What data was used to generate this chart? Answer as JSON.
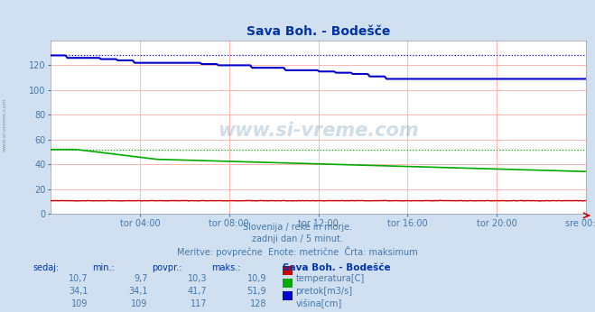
{
  "title": "Sava Boh. - Bodešče",
  "bg_color": "#d0e0f0",
  "plot_bg_color": "#ffffff",
  "grid_color": "#ffaaaa",
  "xlabel_color": "#4477aa",
  "title_color": "#0033aa",
  "x_labels": [
    "tor 04:00",
    "tor 08:00",
    "tor 12:00",
    "tor 16:00",
    "tor 20:00",
    "sre 00:00"
  ],
  "y_ticks": [
    0,
    20,
    40,
    60,
    80,
    100,
    120
  ],
  "y_lim": [
    0,
    140
  ],
  "n_points": 288,
  "temp_color": "#cc0000",
  "pretok_color": "#00aa00",
  "visina_color": "#0000cc",
  "subtitle_line1": "Slovenija / reke in morje.",
  "subtitle_line2": "zadnji dan / 5 minut.",
  "subtitle_line3": "Meritve: povprečne  Enote: metrične  Črta: maksimum",
  "subtitle_color": "#4477aa",
  "table_header_color": "#0033aa",
  "table_value_color": "#4477aa",
  "watermark": "www.si-vreme.com",
  "sedaj_label": "sedaj:",
  "min_label": "min.:",
  "povpr_label": "povpr.:",
  "maks_label": "maks.:",
  "station_label": "Sava Boh. - Bodešče",
  "rows": [
    {
      "sedaj": "10,7",
      "min": "9,7",
      "povpr": "10,3",
      "maks": "10,9",
      "color": "#cc0000",
      "name": "temperatura[C]"
    },
    {
      "sedaj": "34,1",
      "min": "34,1",
      "povpr": "41,7",
      "maks": "51,9",
      "color": "#00aa00",
      "name": "pretok[m3/s]"
    },
    {
      "sedaj": "109",
      "min": "109",
      "povpr": "117",
      "maks": "128",
      "color": "#0000cc",
      "name": "višina[cm]"
    }
  ],
  "temp_max": 10.9,
  "pretok_max": 51.9,
  "visina_max": 128
}
